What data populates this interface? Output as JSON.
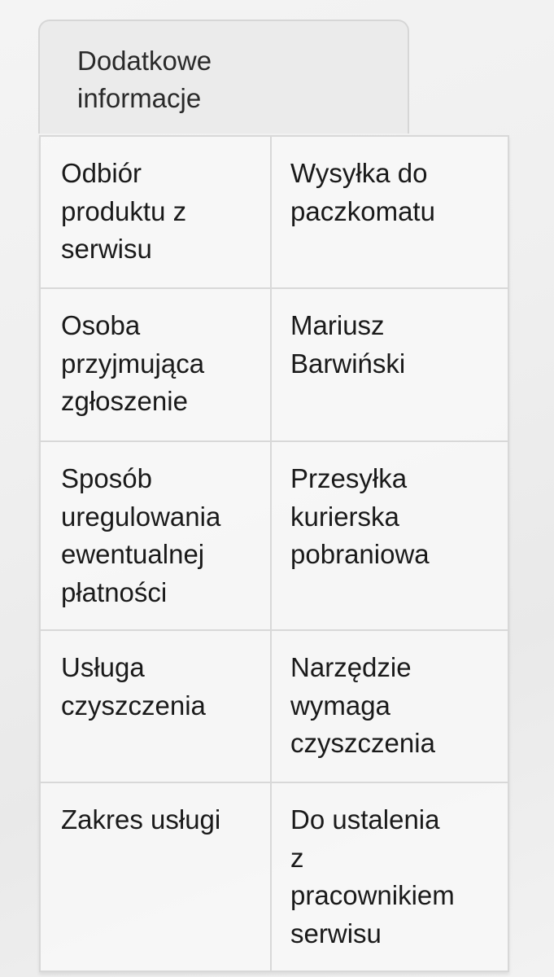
{
  "tab": {
    "label": "Dodatkowe\ninformacje"
  },
  "rows": [
    {
      "label": "Odbiór\nproduktu z\nserwisu",
      "value": "Wysyłka do\npaczkomatu"
    },
    {
      "label": "Osoba\nprzyjmująca\nzgłoszenie",
      "value": "Mariusz\nBarwiński"
    },
    {
      "label": "Sposób\nuregulowania\newentualnej\npłatności",
      "value": "Przesyłka\nkurierska\npobraniowa"
    },
    {
      "label": "Usługa\nczyszczenia",
      "value": "Narzędzie\nwymaga\nczyszczenia"
    },
    {
      "label": "Zakres usługi",
      "value": "Do ustalenia\nz\npracownikiem\nserwisu"
    }
  ]
}
